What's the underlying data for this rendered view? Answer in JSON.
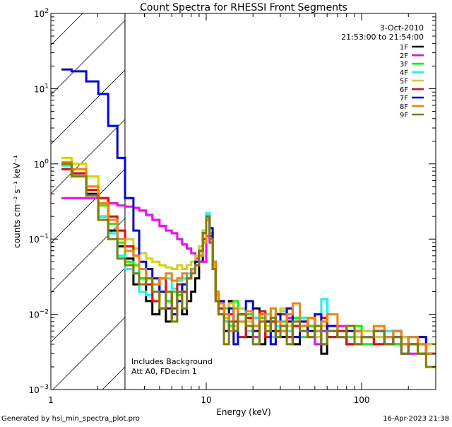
{
  "chart_data": {
    "type": "line",
    "title": "Count Spectra for RHESSI Front Segments",
    "xlabel": "Energy (keV)",
    "ylabel": "counts cm⁻² s⁻¹ keV⁻¹",
    "xscale": "log",
    "yscale": "log",
    "xlim": [
      1,
      300
    ],
    "ylim": [
      0.001,
      100
    ],
    "x_ticks": [
      {
        "value": 1,
        "label": "1"
      },
      {
        "value": 10,
        "label": "10"
      },
      {
        "value": 100,
        "label": "100"
      }
    ],
    "y_ticks": [
      {
        "value": 100,
        "base": "10",
        "exp": "2"
      },
      {
        "value": 10,
        "base": "10",
        "exp": "1"
      },
      {
        "value": 1,
        "base": "10",
        "exp": "0"
      },
      {
        "value": 0.1,
        "base": "10",
        "exp": "−1"
      },
      {
        "value": 0.01,
        "base": "10",
        "exp": "−2"
      },
      {
        "value": 0.001,
        "base": "10",
        "exp": "−3"
      }
    ],
    "hatched_region_keV": [
      1,
      3
    ],
    "date": "3-Oct-2010",
    "time_range": "21:53:00 to 21:54:00",
    "annotations": [
      "Includes Background",
      "Att A0, FDecim 1"
    ],
    "legend_position": "top-right",
    "energy_edges": [
      1.17,
      1.36,
      1.69,
      2.02,
      2.34,
      2.68,
      3.0,
      3.4,
      3.7,
      4.1,
      4.5,
      5.0,
      5.5,
      6.0,
      6.5,
      7.0,
      7.5,
      8.0,
      8.5,
      9.0,
      9.5,
      10.0,
      10.5,
      11.0,
      11.5,
      12,
      13,
      14,
      15,
      16,
      18,
      20,
      22,
      24,
      26,
      28,
      30,
      33,
      36,
      40,
      45,
      50,
      55,
      60,
      70,
      80,
      90,
      100,
      120,
      140,
      160,
      180,
      200,
      230,
      260,
      300
    ],
    "series": [
      {
        "name": "1F",
        "color": "#000000",
        "values": [
          1.0,
          0.7,
          0.4,
          0.2,
          0.13,
          0.08,
          0.055,
          0.025,
          0.03,
          0.015,
          0.01,
          0.012,
          0.008,
          0.02,
          0.015,
          0.01,
          0.015,
          0.02,
          0.03,
          0.05,
          0.1,
          0.2,
          0.12,
          0.04,
          0.015,
          0.012,
          0.008,
          0.015,
          0.006,
          0.01,
          0.005,
          0.012,
          0.004,
          0.008,
          0.006,
          0.01,
          0.005,
          0.008,
          0.004,
          0.007,
          0.005,
          0.006,
          0.003,
          0.006,
          0.005,
          0.004,
          0.006,
          0.005,
          0.004,
          0.005,
          0.004,
          0.005,
          0.004,
          0.003,
          0.004
        ]
      },
      {
        "name": "2F",
        "color": "#ff00ff",
        "values": [
          0.35,
          0.35,
          0.35,
          0.35,
          0.3,
          0.28,
          0.27,
          0.26,
          0.24,
          0.21,
          0.18,
          0.15,
          0.13,
          0.12,
          0.1,
          0.085,
          0.075,
          0.065,
          0.055,
          0.05,
          0.05,
          0.11,
          0.09,
          0.04,
          0.015,
          0.01,
          0.008,
          0.012,
          0.006,
          0.01,
          0.007,
          0.005,
          0.009,
          0.006,
          0.008,
          0.005,
          0.007,
          0.009,
          0.005,
          0.006,
          0.007,
          0.004,
          0.006,
          0.005,
          0.007,
          0.004,
          0.005,
          0.004,
          0.006,
          0.004,
          0.005,
          0.004,
          0.003,
          0.005,
          0.004
        ]
      },
      {
        "name": "3F",
        "color": "#00ff00",
        "values": [
          1.0,
          0.75,
          0.45,
          0.28,
          0.16,
          0.09,
          0.05,
          0.045,
          0.03,
          0.03,
          0.025,
          0.02,
          0.015,
          0.02,
          0.018,
          0.025,
          0.03,
          0.04,
          0.05,
          0.07,
          0.12,
          0.22,
          0.12,
          0.04,
          0.015,
          0.01,
          0.012,
          0.007,
          0.015,
          0.008,
          0.01,
          0.006,
          0.009,
          0.007,
          0.012,
          0.005,
          0.008,
          0.006,
          0.009,
          0.005,
          0.007,
          0.006,
          0.008,
          0.005,
          0.006,
          0.005,
          0.007,
          0.004,
          0.005,
          0.006,
          0.004,
          0.005,
          0.004,
          0.003,
          0.004
        ]
      },
      {
        "name": "4F",
        "color": "#00ffff",
        "values": [
          0.95,
          0.72,
          0.38,
          0.2,
          0.12,
          0.06,
          0.04,
          0.035,
          0.02,
          0.018,
          0.025,
          0.02,
          0.03,
          0.022,
          0.028,
          0.03,
          0.035,
          0.04,
          0.05,
          0.08,
          0.13,
          0.22,
          0.1,
          0.05,
          0.018,
          0.012,
          0.008,
          0.01,
          0.007,
          0.012,
          0.006,
          0.009,
          0.008,
          0.01,
          0.005,
          0.007,
          0.011,
          0.006,
          0.008,
          0.009,
          0.005,
          0.007,
          0.016,
          0.006,
          0.005,
          0.007,
          0.005,
          0.006,
          0.004,
          0.006,
          0.005,
          0.004,
          0.005,
          0.004,
          0.003
        ]
      },
      {
        "name": "5F",
        "color": "#d4d400",
        "values": [
          1.2,
          1.0,
          0.68,
          0.3,
          0.2,
          0.13,
          0.1,
          0.075,
          0.065,
          0.055,
          0.05,
          0.045,
          0.042,
          0.04,
          0.045,
          0.04,
          0.045,
          0.05,
          0.06,
          0.08,
          0.13,
          0.2,
          0.1,
          0.045,
          0.02,
          0.012,
          0.009,
          0.014,
          0.007,
          0.012,
          0.008,
          0.006,
          0.01,
          0.007,
          0.009,
          0.006,
          0.012,
          0.007,
          0.008,
          0.006,
          0.009,
          0.005,
          0.007,
          0.006,
          0.005,
          0.007,
          0.005,
          0.006,
          0.005,
          0.004,
          0.006,
          0.005,
          0.004,
          0.005,
          0.004
        ]
      },
      {
        "name": "6F",
        "color": "#ff0000",
        "values": [
          0.85,
          0.75,
          0.45,
          0.35,
          0.2,
          0.13,
          0.08,
          0.06,
          0.04,
          0.025,
          0.015,
          0.03,
          0.02,
          0.012,
          0.025,
          0.02,
          0.03,
          0.04,
          0.05,
          0.07,
          0.1,
          0.18,
          0.11,
          0.04,
          0.015,
          0.012,
          0.006,
          0.01,
          0.008,
          0.005,
          0.009,
          0.007,
          0.011,
          0.005,
          0.008,
          0.006,
          0.01,
          0.005,
          0.007,
          0.008,
          0.005,
          0.006,
          0.009,
          0.005,
          0.006,
          0.004,
          0.006,
          0.005,
          0.004,
          0.005,
          0.006,
          0.004,
          0.005,
          0.004,
          0.003
        ]
      },
      {
        "name": "7F",
        "color": "#0000ff",
        "values": [
          18,
          17,
          12.5,
          8.5,
          3.2,
          1.2,
          0.35,
          0.13,
          0.05,
          0.04,
          0.03,
          0.02,
          0.012,
          0.01,
          0.015,
          0.025,
          0.03,
          0.04,
          0.05,
          0.07,
          0.12,
          0.2,
          0.14,
          0.05,
          0.02,
          0.015,
          0.006,
          0.012,
          0.004,
          0.01,
          0.015,
          0.006,
          0.01,
          0.008,
          0.004,
          0.01,
          0.006,
          0.012,
          0.005,
          0.008,
          0.006,
          0.01,
          0.004,
          0.007,
          0.005,
          0.006,
          0.004,
          0.005,
          0.006,
          0.004,
          0.005,
          0.003,
          0.004,
          0.005,
          0.003
        ]
      },
      {
        "name": "8F",
        "color": "#ff8000",
        "values": [
          1.05,
          0.85,
          0.5,
          0.3,
          0.18,
          0.1,
          0.07,
          0.06,
          0.04,
          0.03,
          0.025,
          0.03,
          0.035,
          0.028,
          0.03,
          0.035,
          0.03,
          0.04,
          0.045,
          0.06,
          0.09,
          0.18,
          0.1,
          0.05,
          0.02,
          0.014,
          0.01,
          0.006,
          0.012,
          0.008,
          0.011,
          0.007,
          0.01,
          0.006,
          0.012,
          0.008,
          0.006,
          0.01,
          0.014,
          0.007,
          0.009,
          0.006,
          0.008,
          0.01,
          0.005,
          0.007,
          0.006,
          0.005,
          0.007,
          0.005,
          0.006,
          0.004,
          0.005,
          0.004,
          0.003
        ]
      },
      {
        "name": "9F",
        "color": "#808000",
        "values": [
          1.0,
          0.68,
          0.38,
          0.18,
          0.1,
          0.055,
          0.045,
          0.035,
          0.025,
          0.03,
          0.02,
          0.012,
          0.02,
          0.008,
          0.02,
          0.012,
          0.03,
          0.035,
          0.045,
          0.07,
          0.12,
          0.2,
          0.1,
          0.04,
          0.015,
          0.01,
          0.004,
          0.008,
          0.006,
          0.01,
          0.007,
          0.004,
          0.008,
          0.006,
          0.009,
          0.005,
          0.007,
          0.004,
          0.008,
          0.006,
          0.005,
          0.007,
          0.004,
          0.006,
          0.005,
          0.007,
          0.004,
          0.005,
          0.006,
          0.004,
          0.005,
          0.003,
          0.004,
          0.003,
          0.002
        ]
      }
    ]
  },
  "footer": {
    "generated_by": "Generated by hsi_min_spectra_plot.pro",
    "timestamp": "16-Apr-2023 21:38"
  }
}
